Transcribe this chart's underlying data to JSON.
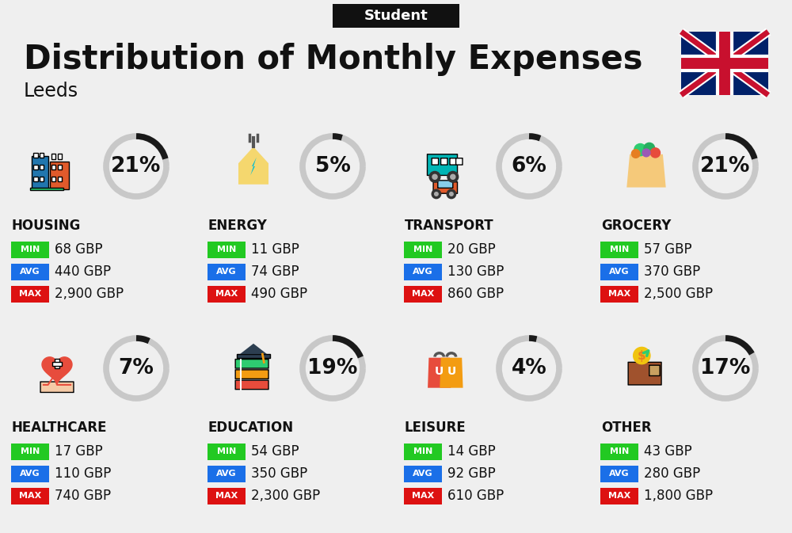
{
  "title": "Distribution of Monthly Expenses",
  "subtitle": "Leeds",
  "city_label": "Student",
  "bg_color": "#efefef",
  "categories": [
    {
      "name": "HOUSING",
      "pct": 21,
      "icon": "housing",
      "min": "68 GBP",
      "avg": "440 GBP",
      "max": "2,900 GBP",
      "row": 0,
      "col": 0
    },
    {
      "name": "ENERGY",
      "pct": 5,
      "icon": "energy",
      "min": "11 GBP",
      "avg": "74 GBP",
      "max": "490 GBP",
      "row": 0,
      "col": 1
    },
    {
      "name": "TRANSPORT",
      "pct": 6,
      "icon": "transport",
      "min": "20 GBP",
      "avg": "130 GBP",
      "max": "860 GBP",
      "row": 0,
      "col": 2
    },
    {
      "name": "GROCERY",
      "pct": 21,
      "icon": "grocery",
      "min": "57 GBP",
      "avg": "370 GBP",
      "max": "2,500 GBP",
      "row": 0,
      "col": 3
    },
    {
      "name": "HEALTHCARE",
      "pct": 7,
      "icon": "healthcare",
      "min": "17 GBP",
      "avg": "110 GBP",
      "max": "740 GBP",
      "row": 1,
      "col": 0
    },
    {
      "name": "EDUCATION",
      "pct": 19,
      "icon": "education",
      "min": "54 GBP",
      "avg": "350 GBP",
      "max": "2,300 GBP",
      "row": 1,
      "col": 1
    },
    {
      "name": "LEISURE",
      "pct": 4,
      "icon": "leisure",
      "min": "14 GBP",
      "avg": "92 GBP",
      "max": "610 GBP",
      "row": 1,
      "col": 2
    },
    {
      "name": "OTHER",
      "pct": 17,
      "icon": "other",
      "min": "43 GBP",
      "avg": "280 GBP",
      "max": "1,800 GBP",
      "row": 1,
      "col": 3
    }
  ],
  "min_color": "#22c922",
  "avg_color": "#1a6fe8",
  "max_color": "#dd1111",
  "text_color": "#111111",
  "donut_dark": "#1a1a1a",
  "donut_light": "#c8c8c8",
  "title_fontsize": 30,
  "subtitle_fontsize": 17,
  "city_label_fontsize": 13,
  "pct_fontsize": 19,
  "cat_fontsize": 12,
  "val_fontsize": 12,
  "badge_fontsize": 8
}
